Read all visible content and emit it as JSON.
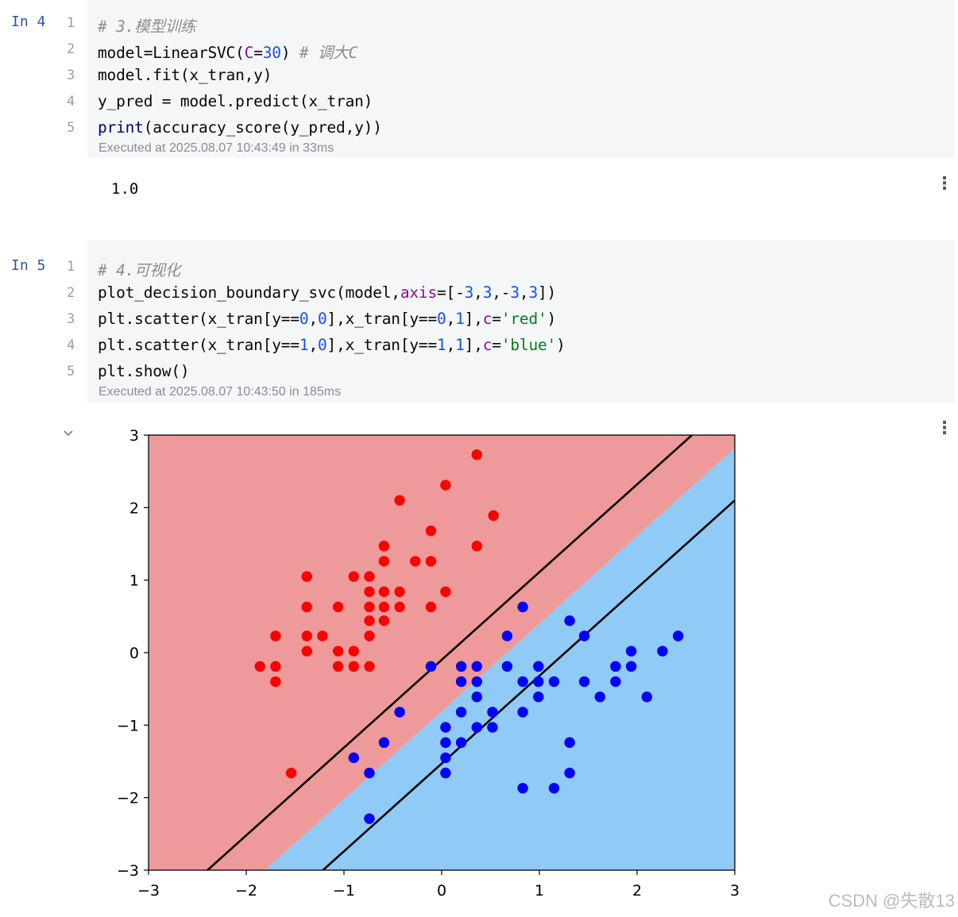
{
  "cell4": {
    "prompt": "In 4",
    "lines": [
      {
        "num": "1",
        "tokens": [
          {
            "t": "# 3.模型训练",
            "c": "cmt"
          }
        ]
      },
      {
        "num": "2",
        "tokens": [
          {
            "t": "model=LinearSVC("
          },
          {
            "t": "C",
            "c": "kw"
          },
          {
            "t": "="
          },
          {
            "t": "30",
            "c": "num"
          },
          {
            "t": ") "
          },
          {
            "t": "# 调大C",
            "c": "cmt"
          }
        ]
      },
      {
        "num": "3",
        "tokens": [
          {
            "t": "model.fit(x_tran,y)"
          }
        ]
      },
      {
        "num": "4",
        "tokens": [
          {
            "t": "y_pred = model.predict(x_tran)"
          }
        ]
      },
      {
        "num": "5",
        "tokens": [
          {
            "t": "print",
            "c": "fn"
          },
          {
            "t": "(accuracy_score(y_pred,y))"
          }
        ]
      }
    ],
    "executed": "Executed at 2025.08.07 10:43:49 in 33ms",
    "output": "1.0"
  },
  "cell5": {
    "prompt": "In 5",
    "lines": [
      {
        "num": "1",
        "tokens": [
          {
            "t": "# 4.可视化",
            "c": "cmt"
          }
        ]
      },
      {
        "num": "2",
        "tokens": [
          {
            "t": "plot_decision_boundary_svc(model,"
          },
          {
            "t": "axis",
            "c": "kw"
          },
          {
            "t": "=[-"
          },
          {
            "t": "3",
            "c": "num"
          },
          {
            "t": ","
          },
          {
            "t": "3",
            "c": "num"
          },
          {
            "t": ",-"
          },
          {
            "t": "3",
            "c": "num"
          },
          {
            "t": ","
          },
          {
            "t": "3",
            "c": "num"
          },
          {
            "t": "])"
          }
        ]
      },
      {
        "num": "3",
        "tokens": [
          {
            "t": "plt.scatter(x_tran[y=="
          },
          {
            "t": "0",
            "c": "num"
          },
          {
            "t": ","
          },
          {
            "t": "0",
            "c": "num"
          },
          {
            "t": "],x_tran[y=="
          },
          {
            "t": "0",
            "c": "num"
          },
          {
            "t": ","
          },
          {
            "t": "1",
            "c": "num"
          },
          {
            "t": "],"
          },
          {
            "t": "c",
            "c": "kw"
          },
          {
            "t": "="
          },
          {
            "t": "'red'",
            "c": "str"
          },
          {
            "t": ")"
          }
        ]
      },
      {
        "num": "4",
        "tokens": [
          {
            "t": "plt.scatter(x_tran[y=="
          },
          {
            "t": "1",
            "c": "num"
          },
          {
            "t": ","
          },
          {
            "t": "0",
            "c": "num"
          },
          {
            "t": "],x_tran[y=="
          },
          {
            "t": "1",
            "c": "num"
          },
          {
            "t": ","
          },
          {
            "t": "1",
            "c": "num"
          },
          {
            "t": "],"
          },
          {
            "t": "c",
            "c": "kw"
          },
          {
            "t": "="
          },
          {
            "t": "'blue'",
            "c": "str"
          },
          {
            "t": ")"
          }
        ]
      },
      {
        "num": "5",
        "tokens": [
          {
            "t": "plt.show()"
          }
        ]
      }
    ],
    "executed": "Executed at 2025.08.07 10:43:50 in 185ms"
  },
  "kebab_glyph": "⋮",
  "watermark": "CSDN @失散13",
  "colors": {
    "red_region": "#ee9a9a",
    "blue_region": "#90caf6",
    "red_points": "#ff0000",
    "blue_points": "#0000ff"
  },
  "chart_data": {
    "type": "scatter",
    "xlim": [
      -3,
      3
    ],
    "ylim": [
      -3,
      3
    ],
    "xticks": [
      -3,
      -2,
      -1,
      0,
      1,
      2,
      3
    ],
    "yticks": [
      -3,
      -2,
      -1,
      0,
      1,
      2,
      3
    ],
    "xtick_labels": [
      "−3",
      "−2",
      "−1",
      "0",
      "1",
      "2",
      "3"
    ],
    "ytick_labels": [
      "−3",
      "−2",
      "−1",
      "0",
      "1",
      "2",
      "3"
    ],
    "decision_boundary": {
      "slope": 1.21,
      "intercept": -0.81,
      "left_class": "red",
      "right_class": "blue"
    },
    "margin_lines": [
      {
        "slope": 1.21,
        "intercept": -0.1
      },
      {
        "slope": 1.21,
        "intercept": -1.53
      }
    ],
    "series": [
      {
        "color": "red",
        "points": [
          [
            0.36,
            2.73
          ],
          [
            0.04,
            2.31
          ],
          [
            -0.43,
            2.1
          ],
          [
            0.53,
            1.89
          ],
          [
            -0.11,
            1.68
          ],
          [
            -0.59,
            1.47
          ],
          [
            0.36,
            1.47
          ],
          [
            -0.59,
            1.26
          ],
          [
            -0.27,
            1.26
          ],
          [
            -0.11,
            1.26
          ],
          [
            -1.38,
            1.05
          ],
          [
            -0.9,
            1.05
          ],
          [
            -0.74,
            1.05
          ],
          [
            -0.74,
            0.84
          ],
          [
            -0.59,
            0.84
          ],
          [
            -0.43,
            0.84
          ],
          [
            0.04,
            0.84
          ],
          [
            -1.38,
            0.63
          ],
          [
            -1.06,
            0.63
          ],
          [
            -0.74,
            0.63
          ],
          [
            -0.59,
            0.63
          ],
          [
            -0.43,
            0.63
          ],
          [
            -0.11,
            0.63
          ],
          [
            -0.74,
            0.44
          ],
          [
            -0.59,
            0.44
          ],
          [
            -1.7,
            0.23
          ],
          [
            -1.38,
            0.23
          ],
          [
            -1.22,
            0.23
          ],
          [
            -0.74,
            0.23
          ],
          [
            -1.38,
            0.02
          ],
          [
            -1.06,
            0.02
          ],
          [
            -0.9,
            0.02
          ],
          [
            -1.86,
            -0.19
          ],
          [
            -1.7,
            -0.19
          ],
          [
            -1.06,
            -0.19
          ],
          [
            -0.9,
            -0.19
          ],
          [
            -0.74,
            -0.19
          ],
          [
            -1.7,
            -0.4
          ],
          [
            -1.54,
            -1.66
          ]
        ]
      },
      {
        "color": "blue",
        "points": [
          [
            0.83,
            0.63
          ],
          [
            1.31,
            0.44
          ],
          [
            0.67,
            0.23
          ],
          [
            1.46,
            0.23
          ],
          [
            2.42,
            0.23
          ],
          [
            1.94,
            0.02
          ],
          [
            2.26,
            0.02
          ],
          [
            -0.11,
            -0.19
          ],
          [
            0.2,
            -0.19
          ],
          [
            0.36,
            -0.19
          ],
          [
            0.67,
            -0.19
          ],
          [
            0.99,
            -0.19
          ],
          [
            1.78,
            -0.19
          ],
          [
            1.94,
            -0.19
          ],
          [
            0.2,
            -0.4
          ],
          [
            0.36,
            -0.4
          ],
          [
            0.83,
            -0.4
          ],
          [
            0.99,
            -0.4
          ],
          [
            1.15,
            -0.4
          ],
          [
            1.46,
            -0.4
          ],
          [
            1.78,
            -0.4
          ],
          [
            0.36,
            -0.61
          ],
          [
            0.99,
            -0.61
          ],
          [
            1.62,
            -0.61
          ],
          [
            2.1,
            -0.61
          ],
          [
            -0.43,
            -0.82
          ],
          [
            0.2,
            -0.82
          ],
          [
            0.52,
            -0.82
          ],
          [
            0.83,
            -0.82
          ],
          [
            0.04,
            -1.03
          ],
          [
            0.36,
            -1.03
          ],
          [
            0.52,
            -1.03
          ],
          [
            -0.59,
            -1.24
          ],
          [
            0.04,
            -1.24
          ],
          [
            0.2,
            -1.24
          ],
          [
            1.31,
            -1.24
          ],
          [
            -0.9,
            -1.45
          ],
          [
            0.04,
            -1.45
          ],
          [
            -0.74,
            -1.66
          ],
          [
            0.04,
            -1.66
          ],
          [
            1.31,
            -1.66
          ],
          [
            0.83,
            -1.87
          ],
          [
            1.15,
            -1.87
          ],
          [
            -0.74,
            -2.29
          ]
        ]
      }
    ]
  }
}
